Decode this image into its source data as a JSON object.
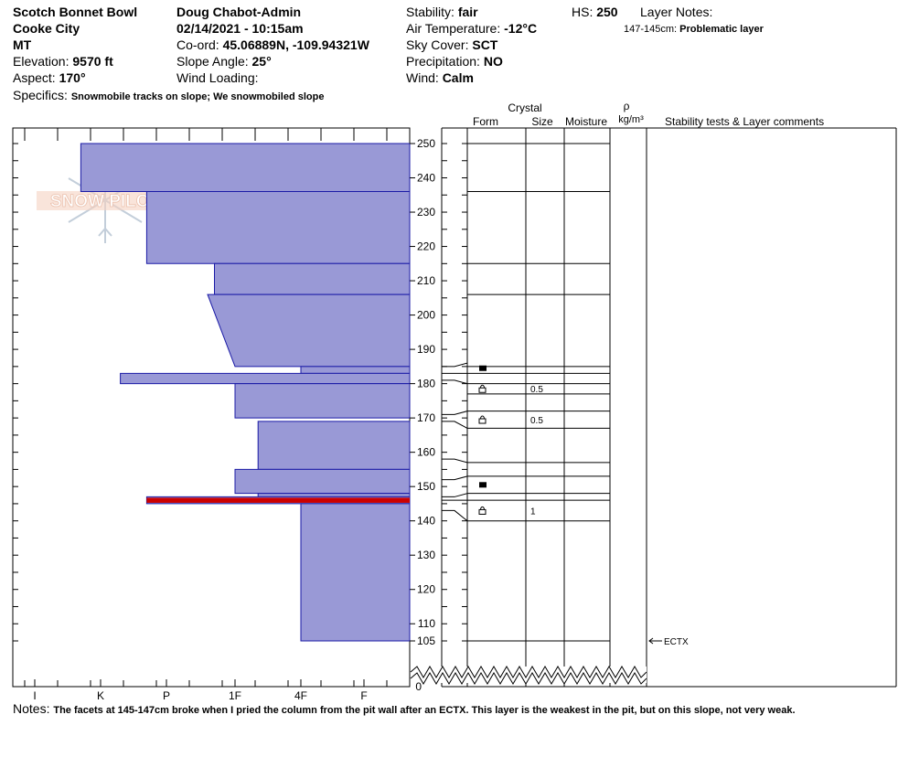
{
  "header": {
    "location": "Scotch Bonnet Bowl",
    "area": "Cooke City",
    "state": "MT",
    "elevation_label": "Elevation:",
    "elevation_value": "9570 ft",
    "aspect_label": "Aspect:",
    "aspect_value": "170°",
    "observer": "Doug Chabot-Admin",
    "datetime": "02/14/2021 - 10:15am",
    "coord_label": "Co-ord:",
    "coord_value": "45.06889N, -109.94321W",
    "slope_label": "Slope Angle:",
    "slope_value": "25°",
    "wind_loading_label": "Wind Loading:",
    "stability_label": "Stability:",
    "stability_value": "fair",
    "air_temp_label": "Air Temperature:",
    "air_temp_value": "-12°C",
    "sky_label": "Sky Cover:",
    "sky_value": "SCT",
    "precip_label": "Precipitation:",
    "precip_value": "NO",
    "wind_label": "Wind:",
    "wind_value": "Calm",
    "hs_label": "HS:",
    "hs_value": "250",
    "layer_notes_label": "Layer Notes:",
    "layer_note_range": "147-145cm:",
    "layer_note_text": "Problematic layer",
    "specifics_label": "Specifics:",
    "specifics_value": "Snowmobile tracks on slope; We snowmobiled slope"
  },
  "logo_text": "SNOW PILOT",
  "columns": {
    "crystal": "Crystal",
    "form": "Form",
    "size": "Size",
    "moisture": "Moisture",
    "rho": "ρ",
    "density_unit": "kg/m³",
    "stability": "Stability tests & Layer comments"
  },
  "notes_label": "Notes:",
  "notes_text": "The facets at 145-147cm broke when I pried the column from the pit wall after an ECTX. This layer is the weakest in the pit, but on this slope, not very weak.",
  "colors": {
    "hardness_fill": "#9999d6",
    "hardness_stroke": "#1a1aa6",
    "weak_layer": "#cc0000"
  },
  "chart_data": {
    "type": "snow-profile",
    "y_axis": {
      "unit": "cm",
      "range": [
        105,
        250
      ],
      "ticks": [
        250,
        240,
        230,
        220,
        210,
        200,
        190,
        180,
        170,
        160,
        150,
        140,
        130,
        120,
        110,
        105
      ],
      "ground_tick": 0
    },
    "hardness_scale": [
      "I",
      "K",
      "P",
      "1F",
      "4F",
      "F"
    ],
    "hardness_layers": [
      {
        "top": 250,
        "bottom": 236,
        "hardness_top": 0.7,
        "hardness_bottom": 0.7
      },
      {
        "top": 236,
        "bottom": 215,
        "hardness_top": 1.7,
        "hardness_bottom": 1.7
      },
      {
        "top": 215,
        "bottom": 206,
        "hardness_top": 2.7,
        "hardness_bottom": 2.7
      },
      {
        "top": 206,
        "bottom": 185,
        "hardness_top": 2.6,
        "hardness_bottom": 3.0
      },
      {
        "top": 185,
        "bottom": 183,
        "hardness_top": 4.0,
        "hardness_bottom": 4.0
      },
      {
        "top": 183,
        "bottom": 180,
        "hardness_top": 1.3,
        "hardness_bottom": 1.3
      },
      {
        "top": 180,
        "bottom": 170,
        "hardness_top": 3.0,
        "hardness_bottom": 3.0
      },
      {
        "top": 169,
        "bottom": 155,
        "hardness_top": 3.35,
        "hardness_bottom": 3.35
      },
      {
        "top": 155,
        "bottom": 148,
        "hardness_top": 3.0,
        "hardness_bottom": 3.0
      },
      {
        "top": 148,
        "bottom": 147,
        "hardness_top": 3.35,
        "hardness_bottom": 3.35
      },
      {
        "top": 147,
        "bottom": 145,
        "hardness_top": 1.7,
        "hardness_bottom": 1.7
      },
      {
        "top": 145,
        "bottom": 105,
        "hardness_top": 4.0,
        "hardness_bottom": 4.0
      }
    ],
    "weak_layer": {
      "top": 147,
      "bottom": 145
    },
    "layer_boundaries": [
      250,
      236,
      215,
      206,
      185,
      183,
      180,
      177,
      172,
      167,
      157,
      153,
      148,
      146,
      140,
      105
    ],
    "crystal_rows": [
      {
        "top": 186,
        "bottom": 183,
        "form": "melt-form",
        "size": ""
      },
      {
        "top": 180,
        "bottom": 177,
        "form": "faceted",
        "size": "0.5"
      },
      {
        "top": 172,
        "bottom": 167,
        "form": "faceted",
        "size": "0.5"
      },
      {
        "top": 153,
        "bottom": 148,
        "form": "melt-form",
        "size": ""
      },
      {
        "top": 146,
        "bottom": 140,
        "form": "faceted",
        "size": "1"
      }
    ],
    "tests": [
      {
        "depth": 105,
        "label": "ECTX"
      }
    ]
  }
}
